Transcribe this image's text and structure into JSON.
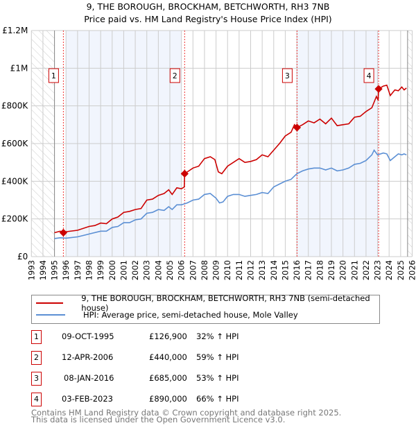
{
  "chart_data": {
    "type": "line",
    "title": "9, THE BOROUGH, BROCKHAM, BETCHWORTH, RH3 7NB",
    "subtitle": "Price paid vs. HM Land Registry's House Price Index (HPI)",
    "xlim": [
      1993,
      2026
    ],
    "ylim": [
      0,
      1200000
    ],
    "x_ticks": [
      "1993",
      "1994",
      "1995",
      "1996",
      "1997",
      "1998",
      "1999",
      "2000",
      "2001",
      "2002",
      "2003",
      "2004",
      "2005",
      "2006",
      "2007",
      "2008",
      "2009",
      "2010",
      "2011",
      "2012",
      "2013",
      "2014",
      "2015",
      "2016",
      "2017",
      "2018",
      "2019",
      "2020",
      "2021",
      "2022",
      "2023",
      "2024",
      "2025",
      "2026"
    ],
    "y_ticks": [
      {
        "v": 0,
        "label": "£0"
      },
      {
        "v": 200000,
        "label": "£200K"
      },
      {
        "v": 400000,
        "label": "£400K"
      },
      {
        "v": 600000,
        "label": "£600K"
      },
      {
        "v": 800000,
        "label": "£800K"
      },
      {
        "v": 1000000,
        "label": "£1M"
      },
      {
        "v": 1200000,
        "label": "£1.2M"
      }
    ],
    "grid": true,
    "data_range": [
      1995,
      2025.6
    ],
    "shaded_ranges": [
      [
        1996,
        2006
      ],
      [
        2016,
        2023.1
      ]
    ],
    "series": [
      {
        "name": "9, THE BOROUGH, BROCKHAM, BETCHWORTH, RH3 7NB (semi-detached house)",
        "color": "#cc0000",
        "x": [
          1995,
          1995.5,
          1995.77,
          1996,
          1997,
          1998,
          1998.5,
          1999,
          1999.5,
          2000,
          2000.5,
          2001,
          2001.5,
          2002,
          2002.5,
          2003,
          2003.5,
          2004,
          2004.5,
          2004.9,
          2005.2,
          2005.6,
          2006,
          2006.25,
          2006.28,
          2007,
          2007.5,
          2008,
          2008.5,
          2008.9,
          2009.2,
          2009.5,
          2010,
          2010.5,
          2011,
          2011.5,
          2012,
          2012.5,
          2013,
          2013.5,
          2014,
          2014.5,
          2015,
          2015.5,
          2015.8,
          2016.02,
          2016.5,
          2017,
          2017.5,
          2018,
          2018.5,
          2019,
          2019.5,
          2020,
          2020.5,
          2021,
          2021.5,
          2022,
          2022.5,
          2022.9,
          2023.05,
          2023.09,
          2023.5,
          2023.8,
          2024.1,
          2024.5,
          2024.8,
          2025.1,
          2025.3,
          2025.5
        ],
        "y": [
          127000,
          135000,
          126900,
          132000,
          140000,
          160000,
          165000,
          178000,
          175000,
          200000,
          210000,
          235000,
          240000,
          250000,
          255000,
          300000,
          305000,
          325000,
          335000,
          355000,
          330000,
          365000,
          360000,
          370000,
          440000,
          470000,
          480000,
          520000,
          530000,
          515000,
          450000,
          440000,
          480000,
          500000,
          520000,
          500000,
          505000,
          515000,
          540000,
          530000,
          565000,
          600000,
          640000,
          660000,
          700000,
          685000,
          700000,
          720000,
          710000,
          730000,
          705000,
          735000,
          695000,
          700000,
          705000,
          740000,
          745000,
          770000,
          790000,
          850000,
          830000,
          890000,
          905000,
          910000,
          855000,
          885000,
          880000,
          900000,
          885000,
          895000
        ]
      },
      {
        "name": "HPI: Average price, semi-detached house, Mole Valley",
        "color": "#5b8fd4",
        "x": [
          1995,
          1995.5,
          1996,
          1997,
          1998,
          1999,
          1999.5,
          2000,
          2000.5,
          2001,
          2001.5,
          2002,
          2002.5,
          2003,
          2003.5,
          2004,
          2004.5,
          2004.9,
          2005.2,
          2005.6,
          2006,
          2006.5,
          2007,
          2007.5,
          2008,
          2008.5,
          2009,
          2009.3,
          2009.6,
          2010,
          2010.5,
          2011,
          2011.5,
          2012,
          2012.5,
          2013,
          2013.5,
          2014,
          2014.5,
          2015,
          2015.5,
          2016,
          2016.5,
          2017,
          2017.5,
          2018,
          2018.5,
          2019,
          2019.5,
          2020,
          2020.5,
          2021,
          2021.5,
          2022,
          2022.5,
          2022.7,
          2023,
          2023.5,
          2023.8,
          2024.1,
          2024.5,
          2024.8,
          2025.1,
          2025.3,
          2025.5
        ],
        "y": [
          96000,
          100000,
          98000,
          105000,
          120000,
          135000,
          135000,
          155000,
          160000,
          180000,
          180000,
          195000,
          200000,
          230000,
          235000,
          250000,
          245000,
          265000,
          250000,
          275000,
          275000,
          285000,
          300000,
          305000,
          330000,
          335000,
          310000,
          285000,
          290000,
          320000,
          330000,
          330000,
          320000,
          325000,
          330000,
          340000,
          335000,
          370000,
          385000,
          400000,
          410000,
          440000,
          455000,
          465000,
          470000,
          470000,
          460000,
          470000,
          455000,
          460000,
          470000,
          490000,
          495000,
          510000,
          540000,
          565000,
          540000,
          550000,
          545000,
          510000,
          530000,
          545000,
          540000,
          545000,
          540000
        ]
      }
    ],
    "sales": [
      {
        "n": "1",
        "x": 1995.77,
        "y": 126900,
        "date": "09-OCT-1995",
        "price": "£126,900",
        "hpi": "32% ↑ HPI"
      },
      {
        "n": "2",
        "x": 2006.28,
        "y": 440000,
        "date": "12-APR-2006",
        "price": "£440,000",
        "hpi": "59% ↑ HPI"
      },
      {
        "n": "3",
        "x": 2016.02,
        "y": 685000,
        "date": "08-JAN-2016",
        "price": "£685,000",
        "hpi": "53% ↑ HPI"
      },
      {
        "n": "4",
        "x": 2023.09,
        "y": 890000,
        "date": "03-FEB-2023",
        "price": "£890,000",
        "hpi": "66% ↑ HPI"
      }
    ]
  },
  "legend": {
    "red": "9, THE BOROUGH, BROCKHAM, BETCHWORTH, RH3 7NB (semi-detached house)",
    "blue": "HPI: Average price, semi-detached house, Mole Valley"
  },
  "footer": {
    "line1": "Contains HM Land Registry data © Crown copyright and database right 2025.",
    "line2": "This data is licensed under the Open Government Licence v3.0."
  }
}
